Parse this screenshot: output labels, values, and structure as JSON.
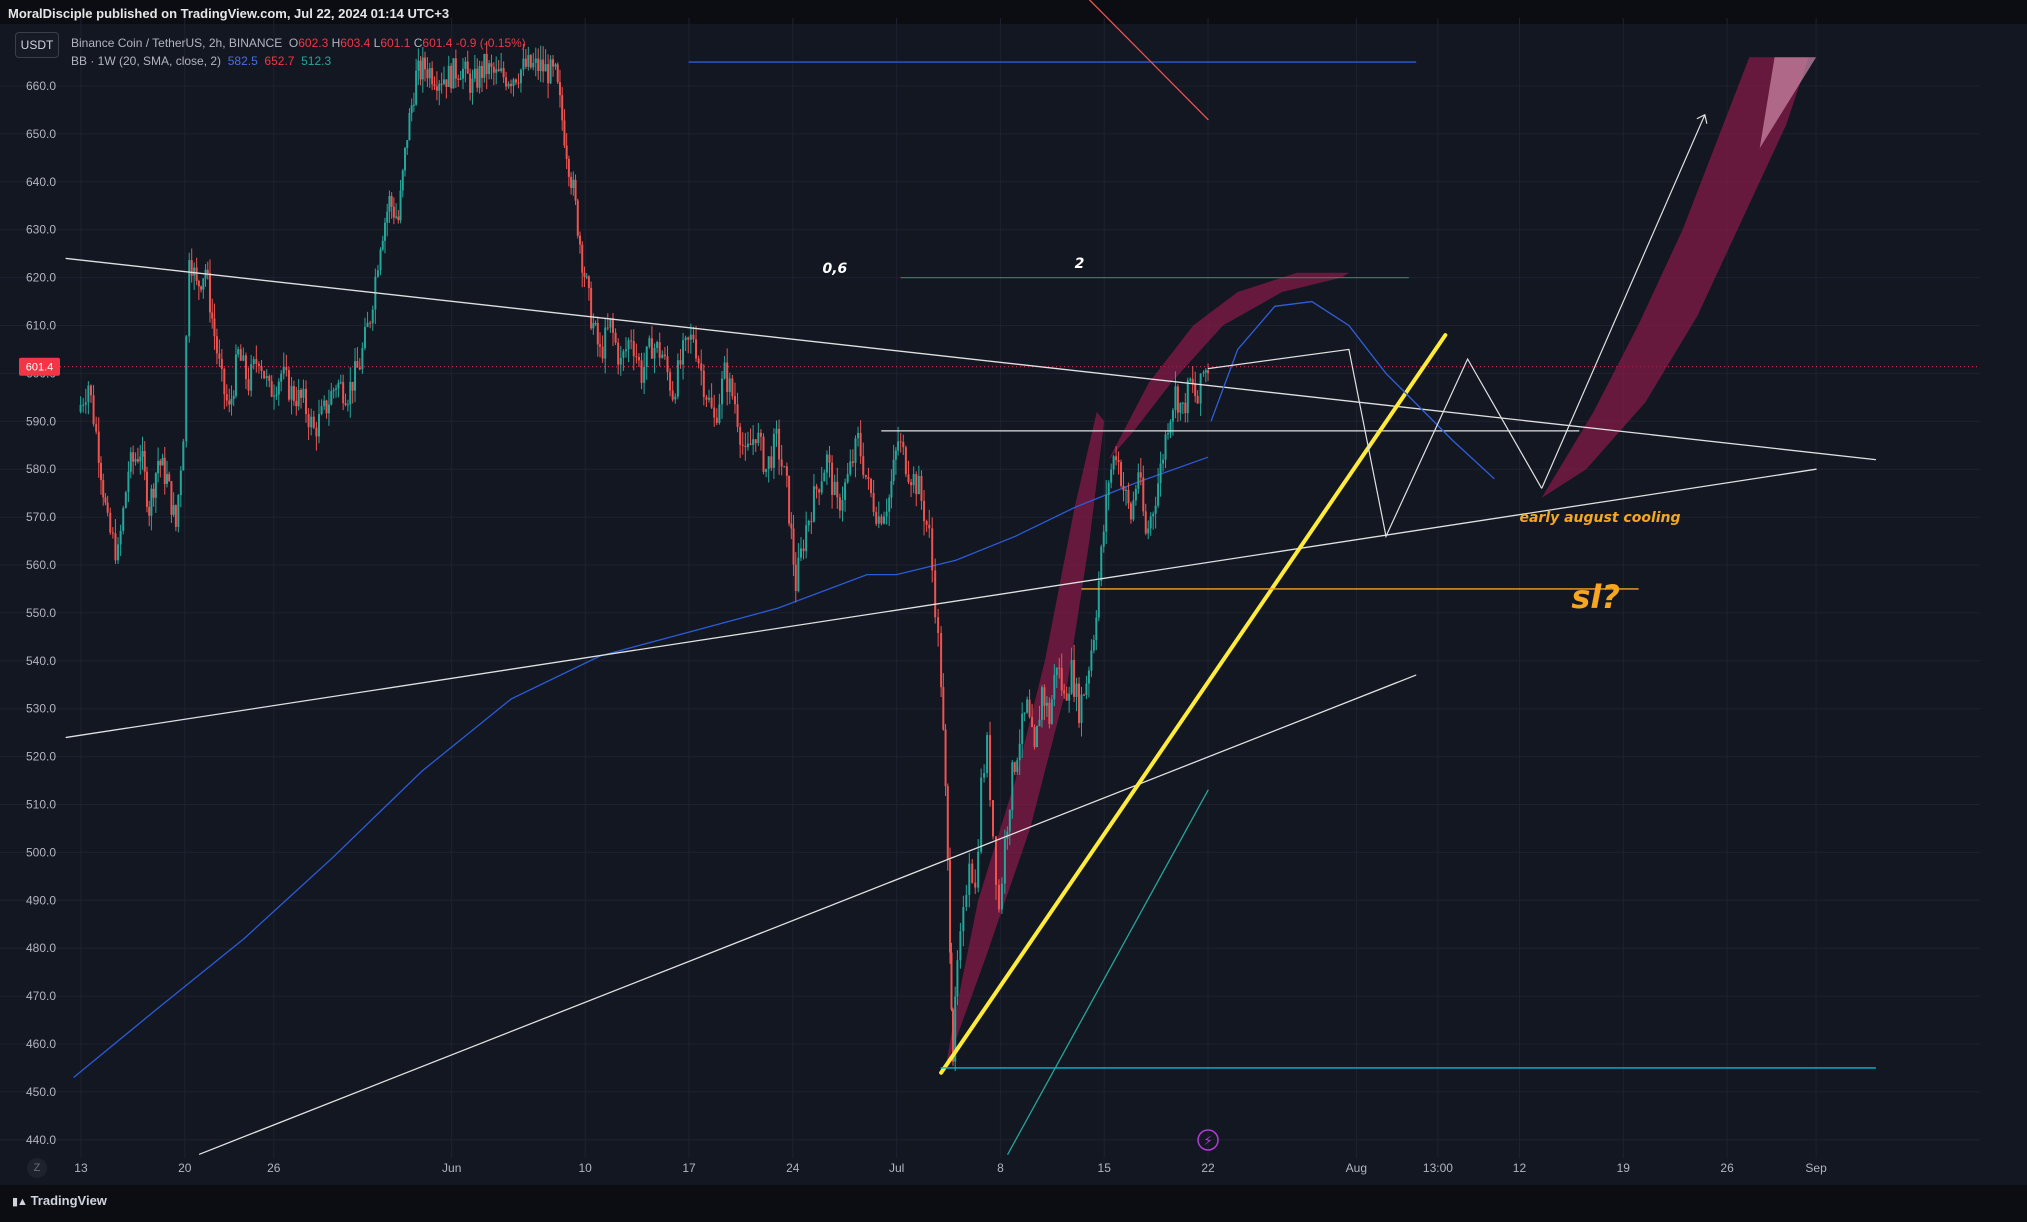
{
  "header": {
    "published": "MoralDisciple published on TradingView.com, Jul 22, 2024 01:14 UTC+3",
    "symbol_badge": "USDT"
  },
  "legend": {
    "title": "Binance Coin / TetherUS, 2h, BINANCE",
    "open_label": "O",
    "open": "602.3",
    "high_label": "H",
    "high": "603.4",
    "low_label": "L",
    "low": "601.1",
    "close_label": "C",
    "close": "601.4",
    "change": "-0.9 (-0.15%)",
    "bb_label": "BB · 1W (20, SMA, close, 2)",
    "bb_basis": "582.5",
    "bb_upper": "652.7",
    "bb_lower": "512.3"
  },
  "footer": {
    "brand": "TradingView",
    "scale_button": "Z"
  },
  "colors": {
    "background": "#131722",
    "grid": "#1e2230",
    "up": "#26a69a",
    "down": "#ef5350",
    "bb_basis": "#2b5bd7",
    "trendline": "#e0e0e0",
    "yellow_trend": "#ffeb3b",
    "orange": "#f5a623",
    "maroon_band": "#8b1a48",
    "price_marker": "#f23645"
  },
  "chart_data": {
    "type": "candlestick",
    "title": "Binance Coin / TetherUS, 2h, BINANCE",
    "xlabel": "",
    "ylabel": "",
    "ylim": [
      436,
      666
    ],
    "y_ticks": [
      440,
      450,
      460,
      470,
      480,
      490,
      500,
      510,
      520,
      530,
      540,
      550,
      560,
      570,
      580,
      590,
      600,
      610,
      620,
      630,
      640,
      650,
      660
    ],
    "x_ticks": [
      {
        "day": 13,
        "label": "13"
      },
      {
        "day": 20,
        "label": "20"
      },
      {
        "day": 26,
        "label": "26"
      },
      {
        "day": 38,
        "label": "Jun"
      },
      {
        "day": 47,
        "label": "10"
      },
      {
        "day": 54,
        "label": "17"
      },
      {
        "day": 61,
        "label": "24"
      },
      {
        "day": 68,
        "label": "Jul"
      },
      {
        "day": 75,
        "label": "8"
      },
      {
        "day": 82,
        "label": "15"
      },
      {
        "day": 89,
        "label": "22"
      },
      {
        "day": 99,
        "label": "Aug"
      },
      {
        "day": 104.5,
        "label": "13:00"
      },
      {
        "day": 110,
        "label": "12"
      },
      {
        "day": 117,
        "label": "19"
      },
      {
        "day": 124,
        "label": "26"
      },
      {
        "day": 130,
        "label": "Sep"
      }
    ],
    "last_price": 601.4,
    "price_path": [
      [
        12.8,
        592
      ],
      [
        13.5,
        598
      ],
      [
        14.2,
        584
      ],
      [
        14.8,
        568
      ],
      [
        15.5,
        562
      ],
      [
        16.2,
        580
      ],
      [
        17,
        584
      ],
      [
        17.6,
        572
      ],
      [
        18.2,
        582
      ],
      [
        18.8,
        578
      ],
      [
        19.4,
        568
      ],
      [
        19.9,
        588
      ],
      [
        20.3,
        626
      ],
      [
        20.8,
        618
      ],
      [
        21.4,
        622
      ],
      [
        22,
        608
      ],
      [
        22.5,
        598
      ],
      [
        23,
        592
      ],
      [
        23.6,
        604
      ],
      [
        24.3,
        598
      ],
      [
        25,
        604
      ],
      [
        25.7,
        596
      ],
      [
        26.5,
        600
      ],
      [
        27.2,
        596
      ],
      [
        28,
        594
      ],
      [
        28.7,
        588
      ],
      [
        29.4,
        592
      ],
      [
        30.2,
        598
      ],
      [
        31,
        596
      ],
      [
        31.8,
        602
      ],
      [
        32.5,
        612
      ],
      [
        33.2,
        628
      ],
      [
        33.8,
        636
      ],
      [
        34.4,
        632
      ],
      [
        35,
        650
      ],
      [
        35.6,
        662
      ],
      [
        36.2,
        664
      ],
      [
        37,
        662
      ],
      [
        37.8,
        662
      ],
      [
        38.6,
        664
      ],
      [
        39.4,
        660
      ],
      [
        40.2,
        664
      ],
      [
        41,
        662
      ],
      [
        42,
        662
      ],
      [
        43,
        664
      ],
      [
        44,
        664
      ],
      [
        45,
        662
      ],
      [
        45.6,
        650
      ],
      [
        46.2,
        638
      ],
      [
        46.8,
        624
      ],
      [
        47.4,
        612
      ],
      [
        48,
        604
      ],
      [
        48.7,
        610
      ],
      [
        49.4,
        602
      ],
      [
        50.1,
        608
      ],
      [
        50.8,
        600
      ],
      [
        51.5,
        606
      ],
      [
        52.2,
        604
      ],
      [
        52.9,
        596
      ],
      [
        53.6,
        604
      ],
      [
        54.3,
        608
      ],
      [
        55,
        598
      ],
      [
        55.7,
        590
      ],
      [
        56.4,
        600
      ],
      [
        57.1,
        594
      ],
      [
        57.8,
        582
      ],
      [
        58.5,
        588
      ],
      [
        59.2,
        580
      ],
      [
        59.9,
        586
      ],
      [
        60.6,
        576
      ],
      [
        61.2,
        556
      ],
      [
        61.9,
        568
      ],
      [
        62.6,
        576
      ],
      [
        63.3,
        582
      ],
      [
        64,
        572
      ],
      [
        64.7,
        578
      ],
      [
        65.4,
        586
      ],
      [
        66.1,
        576
      ],
      [
        66.8,
        570
      ],
      [
        67.5,
        574
      ],
      [
        68.1,
        586
      ],
      [
        68.8,
        580
      ],
      [
        69.5,
        576
      ],
      [
        70.2,
        566
      ],
      [
        70.6,
        552
      ],
      [
        71,
        536
      ],
      [
        71.3,
        512
      ],
      [
        71.6,
        482
      ],
      [
        71.8,
        458
      ],
      [
        72.1,
        476
      ],
      [
        72.5,
        486
      ],
      [
        72.9,
        500
      ],
      [
        73.3,
        492
      ],
      [
        73.7,
        514
      ],
      [
        74.1,
        522
      ],
      [
        74.5,
        504
      ],
      [
        74.9,
        488
      ],
      [
        75.3,
        502
      ],
      [
        75.8,
        516
      ],
      [
        76.3,
        524
      ],
      [
        76.8,
        530
      ],
      [
        77.3,
        520
      ],
      [
        77.8,
        534
      ],
      [
        78.3,
        528
      ],
      [
        78.8,
        540
      ],
      [
        79.3,
        532
      ],
      [
        79.8,
        538
      ],
      [
        80.3,
        530
      ],
      [
        80.8,
        536
      ],
      [
        81.3,
        546
      ],
      [
        81.8,
        562
      ],
      [
        82.3,
        578
      ],
      [
        82.8,
        584
      ],
      [
        83.3,
        576
      ],
      [
        83.8,
        570
      ],
      [
        84.3,
        580
      ],
      [
        84.8,
        566
      ],
      [
        85.3,
        572
      ],
      [
        85.8,
        580
      ],
      [
        86.3,
        590
      ],
      [
        86.8,
        596
      ],
      [
        87.3,
        592
      ],
      [
        87.8,
        598
      ],
      [
        88.3,
        594
      ],
      [
        88.7,
        600
      ],
      [
        89,
        601.4
      ]
    ],
    "bollinger_basis": [
      [
        12.5,
        453
      ],
      [
        18,
        467
      ],
      [
        24,
        482
      ],
      [
        30,
        499
      ],
      [
        36,
        517
      ],
      [
        42,
        532
      ],
      [
        48,
        541
      ],
      [
        54,
        546
      ],
      [
        60,
        551
      ],
      [
        66,
        558
      ],
      [
        68,
        558
      ],
      [
        72,
        561
      ],
      [
        76,
        566
      ],
      [
        80,
        572
      ],
      [
        84,
        577
      ],
      [
        89,
        582.5
      ]
    ],
    "annotations": [
      {
        "text": "0,6",
        "at": [
          63,
          621
        ],
        "color": "#ffffff"
      },
      {
        "text": "2",
        "at": [
          80,
          622
        ],
        "color": "#ffffff"
      },
      {
        "text": "early august cooling",
        "at": [
          110,
          569
        ],
        "color": "#f5a623"
      },
      {
        "text": "sl?",
        "at": [
          113.5,
          551
        ],
        "color": "#f5a623"
      }
    ],
    "drawn_lines": [
      {
        "name": "descending-trendline",
        "from": [
          12,
          624
        ],
        "to": [
          134,
          582
        ],
        "color": "#e0e0e0"
      },
      {
        "name": "ascending-trendline",
        "from": [
          12,
          524
        ],
        "to": [
          130,
          580
        ],
        "color": "#e0e0e0"
      },
      {
        "name": "lower-channel-line",
        "from": [
          21,
          437
        ],
        "to": [
          103,
          537
        ],
        "color": "#e0e0e0"
      },
      {
        "name": "horizontal-588",
        "from": [
          67,
          588
        ],
        "to": [
          114,
          588
        ],
        "color": "#e0e0e0"
      },
      {
        "name": "yellow-support",
        "from": [
          71,
          454
        ],
        "to": [
          105,
          608
        ],
        "color": "#ffeb3b"
      },
      {
        "name": "sl-orange-555",
        "from": [
          80.5,
          555
        ],
        "to": [
          118,
          555
        ],
        "color": "#f5a623"
      },
      {
        "name": "teal-bottom-455",
        "from": [
          71,
          455
        ],
        "to": [
          134,
          455
        ],
        "color": "#00bcd4"
      },
      {
        "name": "blue-top-665",
        "from": [
          54,
          665
        ],
        "to": [
          103,
          665
        ],
        "color": "#2b5bd7"
      },
      {
        "name": "fib-0.6-line",
        "from": [
          68.3,
          620
        ],
        "to": [
          102.5,
          620
        ],
        "color": "#2e7d5e"
      },
      {
        "name": "teal-diagonal",
        "from": [
          75.5,
          437
        ],
        "to": [
          89,
          513
        ],
        "color": "#26a69a"
      },
      {
        "name": "red-diagonal",
        "from": [
          81,
          678
        ],
        "to": [
          89,
          653
        ],
        "color": "#ef5350"
      }
    ],
    "projection_zigzag": [
      [
        89,
        601
      ],
      [
        98.5,
        605
      ],
      [
        101,
        566
      ],
      [
        106.5,
        603
      ],
      [
        111.5,
        576
      ]
    ],
    "projection_curve": [
      [
        89.2,
        590
      ],
      [
        91,
        605
      ],
      [
        93.5,
        614
      ],
      [
        96,
        615
      ],
      [
        98.5,
        610
      ],
      [
        101,
        600
      ],
      [
        105.5,
        586
      ],
      [
        108.3,
        578
      ]
    ],
    "arrow_path": [
      [
        111.5,
        576
      ],
      [
        122.5,
        654
      ]
    ]
  }
}
